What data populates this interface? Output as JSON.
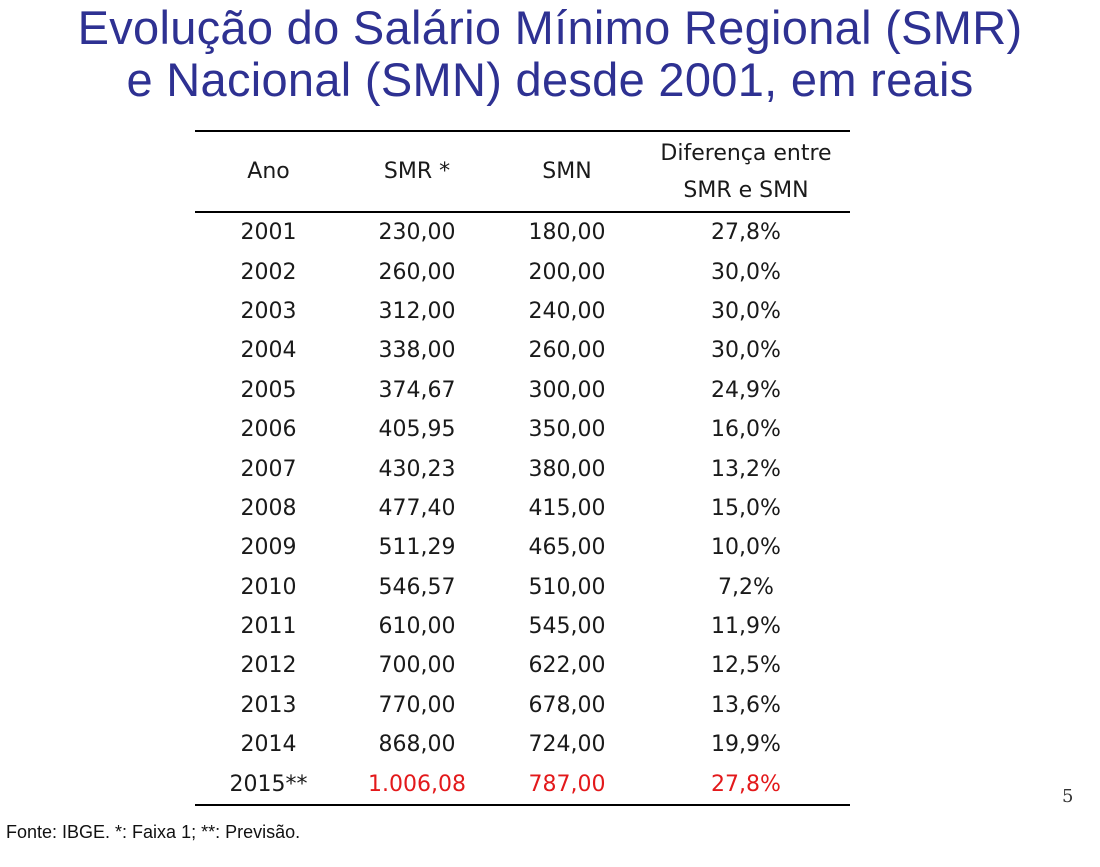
{
  "title": {
    "line1": "Evolução do Salário Mínimo Regional (SMR)",
    "line2": "e Nacional (SMN) desde 2001, em reais"
  },
  "table": {
    "headers": {
      "year": "Ano",
      "smr": "SMR *",
      "smn": "SMN",
      "diff_line1": "Diferença entre",
      "diff_line2": "SMR e SMN"
    },
    "rows": [
      {
        "year": "2001",
        "smr": "230,00",
        "smn": "180,00",
        "diff": "27,8%"
      },
      {
        "year": "2002",
        "smr": "260,00",
        "smn": "200,00",
        "diff": "30,0%"
      },
      {
        "year": "2003",
        "smr": "312,00",
        "smn": "240,00",
        "diff": "30,0%"
      },
      {
        "year": "2004",
        "smr": "338,00",
        "smn": "260,00",
        "diff": "30,0%"
      },
      {
        "year": "2005",
        "smr": "374,67",
        "smn": "300,00",
        "diff": "24,9%"
      },
      {
        "year": "2006",
        "smr": "405,95",
        "smn": "350,00",
        "diff": "16,0%"
      },
      {
        "year": "2007",
        "smr": "430,23",
        "smn": "380,00",
        "diff": "13,2%"
      },
      {
        "year": "2008",
        "smr": "477,40",
        "smn": "415,00",
        "diff": "15,0%"
      },
      {
        "year": "2009",
        "smr": "511,29",
        "smn": "465,00",
        "diff": "10,0%"
      },
      {
        "year": "2010",
        "smr": "546,57",
        "smn": "510,00",
        "diff": "7,2%"
      },
      {
        "year": "2011",
        "smr": "610,00",
        "smn": "545,00",
        "diff": "11,9%"
      },
      {
        "year": "2012",
        "smr": "700,00",
        "smn": "622,00",
        "diff": "12,5%"
      },
      {
        "year": "2013",
        "smr": "770,00",
        "smn": "678,00",
        "diff": "13,6%"
      },
      {
        "year": "2014",
        "smr": "868,00",
        "smn": "724,00",
        "diff": "19,9%"
      },
      {
        "year": "2015**",
        "smr": "1.006,08",
        "smn": "787,00",
        "diff": "27,8%"
      }
    ],
    "highlight_color": "#e3191b"
  },
  "page_number": "5",
  "source": "Fonte: IBGE. *: Faixa 1; **: Previsão."
}
